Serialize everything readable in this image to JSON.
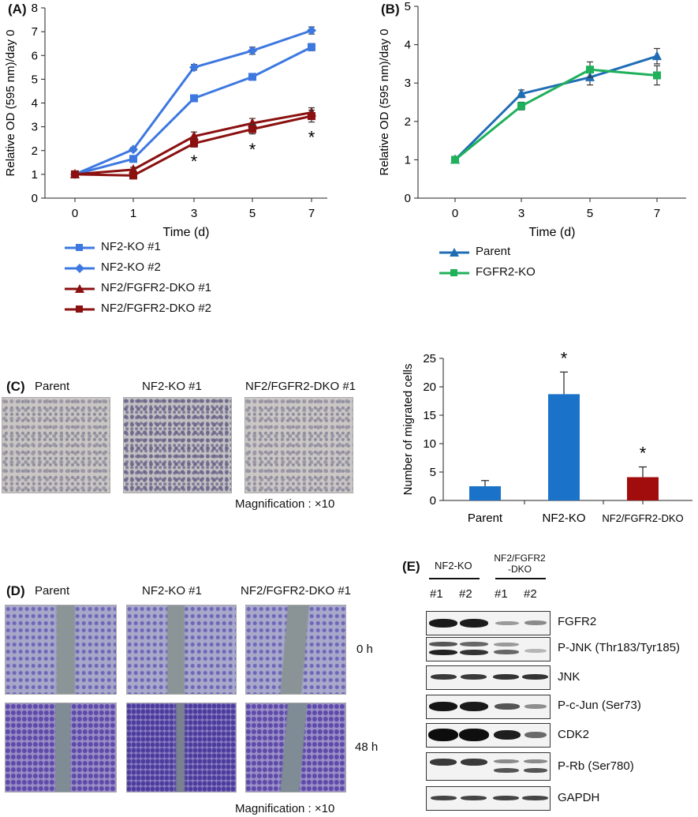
{
  "panel_a": {
    "label": "(A)",
    "legend": [
      "NF2-KO #1",
      "NF2-KO #2",
      "NF2/FGFR2-DKO #1",
      "NF2/FGFR2-DKO #2"
    ]
  },
  "panel_b": {
    "label": "(B)",
    "legend": [
      "Parent",
      "FGFR2-KO"
    ]
  },
  "panel_c": {
    "label": "(C)",
    "image_labels": [
      "Parent",
      "NF2-KO #1",
      "NF2/FGFR2-DKO #1"
    ],
    "magnification": "Magnification : ×10"
  },
  "panel_d": {
    "label": "(D)",
    "image_labels": [
      "Parent",
      "NF2-KO #1",
      "NF2/FGFR2-DKO #1"
    ],
    "time_labels": [
      "0 h",
      "48 h"
    ],
    "magnification": "Magnification : ×10"
  },
  "panel_e": {
    "label": "(E)",
    "group1": "NF2-KO",
    "group2_line1": "NF2/FGFR2",
    "group2_line2": "-DKO",
    "lanes": [
      "#1",
      "#2",
      "#1",
      "#2"
    ],
    "proteins": [
      "FGFR2",
      "P-JNK (Thr183/Tyr185)",
      "JNK",
      "P-c-Jun (Ser73)",
      "CDK2",
      "P-Rb (Ser780)",
      "GAPDH"
    ]
  },
  "colors": {
    "nf2ko": "#3d78e0",
    "dko": "#8b1010",
    "parent": "#1f6db5",
    "fgfr2ko": "#1fb05a",
    "bar_parent": "#1a73c8",
    "bar_nf2ko": "#1a73c8",
    "bar_dko": "#a10d0d"
  },
  "chart_data": [
    {
      "type": "line",
      "title": "",
      "xlabel": "Time (d)",
      "ylabel": "Relative OD (595 nm)/day 0",
      "categories": [
        "0",
        "1",
        "3",
        "5",
        "7"
      ],
      "ylim": [
        0,
        8
      ],
      "yticks": [
        "0",
        "1",
        "2",
        "3",
        "4",
        "5",
        "6",
        "7",
        "8"
      ],
      "annotations": [
        "*",
        "*",
        "*"
      ],
      "series": [
        {
          "name": "NF2-KO #1",
          "values": [
            1.0,
            1.65,
            4.2,
            5.1,
            6.35
          ],
          "err": [
            0.05,
            0.08,
            0.1,
            0.12,
            0.15
          ]
        },
        {
          "name": "NF2-KO #2",
          "values": [
            1.0,
            2.05,
            5.5,
            6.2,
            7.05
          ],
          "err": [
            0.05,
            0.08,
            0.12,
            0.15,
            0.15
          ]
        },
        {
          "name": "NF2/FGFR2-DKO #1",
          "values": [
            1.0,
            1.2,
            2.6,
            3.15,
            3.6
          ],
          "err": [
            0.05,
            0.1,
            0.18,
            0.2,
            0.2
          ]
        },
        {
          "name": "NF2/FGFR2-DKO #2",
          "values": [
            1.0,
            0.95,
            2.3,
            2.9,
            3.45
          ],
          "err": [
            0.05,
            0.1,
            0.15,
            0.2,
            0.25
          ]
        }
      ]
    },
    {
      "type": "line",
      "title": "",
      "xlabel": "Time (d)",
      "ylabel": "Relative OD (595 nm)/day 0",
      "categories": [
        "0",
        "3",
        "5",
        "7"
      ],
      "ylim": [
        0,
        5
      ],
      "yticks": [
        "0",
        "1",
        "2",
        "3",
        "4",
        "5"
      ],
      "series": [
        {
          "name": "Parent",
          "values": [
            1.0,
            2.72,
            3.15,
            3.7
          ],
          "err": [
            0.05,
            0.1,
            0.2,
            0.2
          ]
        },
        {
          "name": "FGFR2-KO",
          "values": [
            1.0,
            2.4,
            3.35,
            3.2
          ],
          "err": [
            0.05,
            0.1,
            0.2,
            0.25
          ]
        }
      ]
    },
    {
      "type": "bar",
      "title": "",
      "xlabel": "",
      "ylabel": "Number of migrated cells",
      "categories": [
        "Parent",
        "NF2-KO",
        "NF2/FGFR2-DKO"
      ],
      "values": [
        2.5,
        18.7,
        4.1
      ],
      "err": [
        1.0,
        3.9,
        1.8
      ],
      "ylim": [
        0,
        25
      ],
      "yticks": [
        "0",
        "5",
        "10",
        "15",
        "20",
        "25"
      ],
      "annotations": [
        "",
        "*",
        "*"
      ]
    }
  ]
}
